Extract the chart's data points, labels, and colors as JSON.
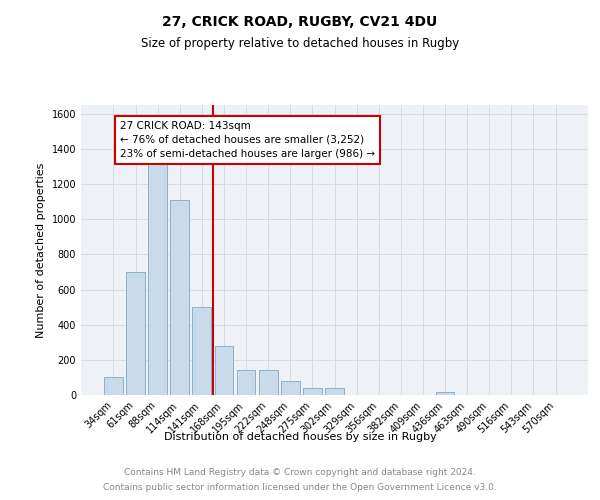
{
  "title": "27, CRICK ROAD, RUGBY, CV21 4DU",
  "subtitle": "Size of property relative to detached houses in Rugby",
  "xlabel": "Distribution of detached houses by size in Rugby",
  "ylabel": "Number of detached properties",
  "categories": [
    "34sqm",
    "61sqm",
    "88sqm",
    "114sqm",
    "141sqm",
    "168sqm",
    "195sqm",
    "222sqm",
    "248sqm",
    "275sqm",
    "302sqm",
    "329sqm",
    "356sqm",
    "382sqm",
    "409sqm",
    "436sqm",
    "463sqm",
    "490sqm",
    "516sqm",
    "543sqm",
    "570sqm"
  ],
  "values": [
    100,
    700,
    1340,
    1110,
    500,
    280,
    145,
    145,
    80,
    38,
    38,
    0,
    0,
    0,
    0,
    15,
    0,
    0,
    0,
    0,
    0
  ],
  "bar_color": "#c9daea",
  "bar_edge_color": "#7aaac8",
  "property_line_x": 4.5,
  "annotation_line1": "27 CRICK ROAD: 143sqm",
  "annotation_line2": "← 76% of detached houses are smaller (3,252)",
  "annotation_line3": "23% of semi-detached houses are larger (986) →",
  "annotation_box_color": "#ffffff",
  "annotation_border_color": "#cc0000",
  "vline_color": "#cc0000",
  "grid_color": "#d0d8e0",
  "background_color": "#eef2f7",
  "ylim": [
    0,
    1650
  ],
  "yticks": [
    0,
    200,
    400,
    600,
    800,
    1000,
    1200,
    1400,
    1600
  ],
  "footer_line1": "Contains HM Land Registry data © Crown copyright and database right 2024.",
  "footer_line2": "Contains public sector information licensed under the Open Government Licence v3.0.",
  "title_fontsize": 10,
  "subtitle_fontsize": 8.5,
  "ylabel_fontsize": 8,
  "xlabel_fontsize": 8,
  "tick_fontsize": 7,
  "annotation_fontsize": 7.5,
  "footer_fontsize": 6.5
}
